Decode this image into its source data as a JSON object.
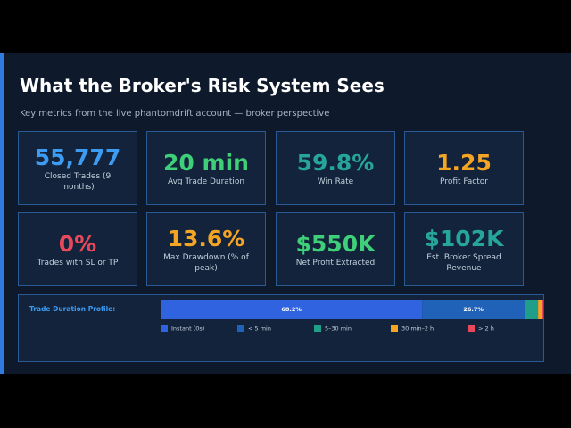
{
  "header": {
    "title": "What the Broker's Risk System Sees",
    "subtitle": "Key metrics from the live phantomdrift account — broker perspective"
  },
  "metrics": [
    {
      "value": "55,777",
      "label": "Closed Trades (9 months)",
      "color": "#3d9bf2"
    },
    {
      "value": "20 min",
      "label": "Avg Trade Duration",
      "color": "#3ecf78"
    },
    {
      "value": "59.8%",
      "label": "Win Rate",
      "color": "#26a69a"
    },
    {
      "value": "1.25",
      "label": "Profit Factor",
      "color": "#f5a524"
    },
    {
      "value": "0%",
      "label": "Trades with SL or TP",
      "color": "#e8485c"
    },
    {
      "value": "13.6%",
      "label": "Max Drawdown (% of peak)",
      "color": "#f5a524"
    },
    {
      "value": "$550K",
      "label": "Net Profit Extracted",
      "color": "#3ecf78"
    },
    {
      "value": "$102K",
      "label": "Est. Broker Spread Revenue",
      "color": "#26a69a"
    }
  ],
  "chart_data": {
    "type": "stacked-hbar",
    "title": "Trade Duration Profile:",
    "xlim": [
      0,
      100
    ],
    "series": [
      {
        "name": "Instant (0s)",
        "color": "#2f63e0",
        "values": [
          68.2
        ],
        "value_labels": [
          "68.2%"
        ]
      },
      {
        "name": "< 5 min",
        "color": "#1f62b8",
        "values": [
          26.7
        ],
        "value_labels": [
          "26.7%"
        ]
      },
      {
        "name": "5–30 min",
        "color": "#1f9e8a",
        "values": [
          3.5
        ]
      },
      {
        "name": "30 min–2 h",
        "color": "#f5a524",
        "values": [
          1.0
        ]
      },
      {
        "name": "> 2 h",
        "color": "#e8485c",
        "values": [
          0.6
        ]
      }
    ]
  }
}
